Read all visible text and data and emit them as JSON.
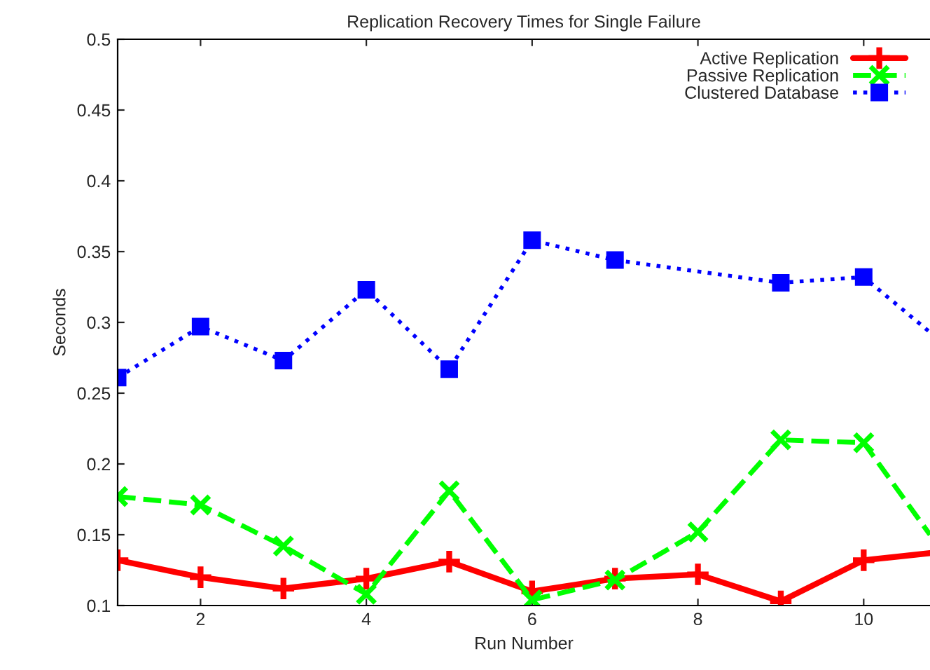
{
  "chart_data": {
    "type": "line",
    "title": "Replication Recovery Times for Single Failure",
    "xlabel": "Run Number",
    "ylabel": "Seconds",
    "xlim": [
      1,
      10.8
    ],
    "xticks": [
      2,
      4,
      6,
      8,
      10
    ],
    "ylim": [
      0.1,
      0.5
    ],
    "yticks": [
      0.1,
      0.15,
      0.2,
      0.25,
      0.3,
      0.35,
      0.4,
      0.45,
      0.5
    ],
    "grid": false,
    "legend": "top right",
    "series": [
      {
        "name": "Active Replication",
        "color": "#ff0000",
        "marker": "cross",
        "line_style": "solid",
        "x": [
          1,
          2,
          3,
          4,
          5,
          6,
          7,
          8,
          9,
          10,
          10.8
        ],
        "values": [
          0.132,
          0.12,
          0.112,
          0.119,
          0.131,
          0.11,
          0.119,
          0.122,
          0.103,
          0.132,
          0.137
        ]
      },
      {
        "name": "Passive Replication",
        "color": "#00ff00",
        "marker": "x",
        "line_style": "dashed",
        "x": [
          1,
          2,
          3,
          4,
          5,
          6,
          7,
          8,
          9,
          10,
          10.8
        ],
        "values": [
          0.177,
          0.171,
          0.142,
          0.108,
          0.181,
          0.104,
          0.118,
          0.152,
          0.217,
          0.215,
          0.15
        ]
      },
      {
        "name": "Clustered Database",
        "color": "#0000ff",
        "marker": "square",
        "line_style": "dotted",
        "x": [
          1,
          2,
          3,
          4,
          5,
          6,
          7,
          9,
          10,
          10.8
        ],
        "values": [
          0.261,
          0.297,
          0.273,
          0.323,
          0.267,
          0.358,
          0.344,
          0.328,
          0.332,
          0.293
        ]
      }
    ]
  }
}
